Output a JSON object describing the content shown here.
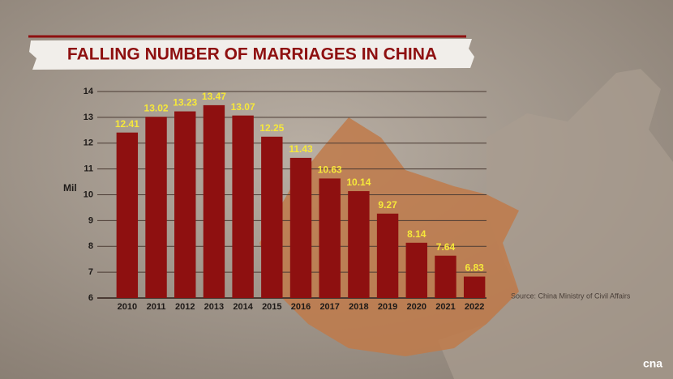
{
  "chart_data": {
    "type": "bar",
    "title": "FALLING NUMBER OF MARRIAGES IN CHINA",
    "y_label": "Mil",
    "source": "Source: China Ministry of Civil Affairs",
    "categories": [
      "2010",
      "2011",
      "2012",
      "2013",
      "2014",
      "2015",
      "2016",
      "2017",
      "2018",
      "2019",
      "2020",
      "2021",
      "2022"
    ],
    "values": [
      12.41,
      13.02,
      13.23,
      13.47,
      13.07,
      12.25,
      11.43,
      10.63,
      10.14,
      9.27,
      8.14,
      7.64,
      6.83
    ],
    "color": "#8e1010",
    "label_color": "#f6e83a",
    "ylim": [
      6,
      14
    ],
    "yticks": [
      6,
      7,
      8,
      9,
      10,
      11,
      12,
      13,
      14
    ],
    "grid": true
  },
  "logo": "cna"
}
